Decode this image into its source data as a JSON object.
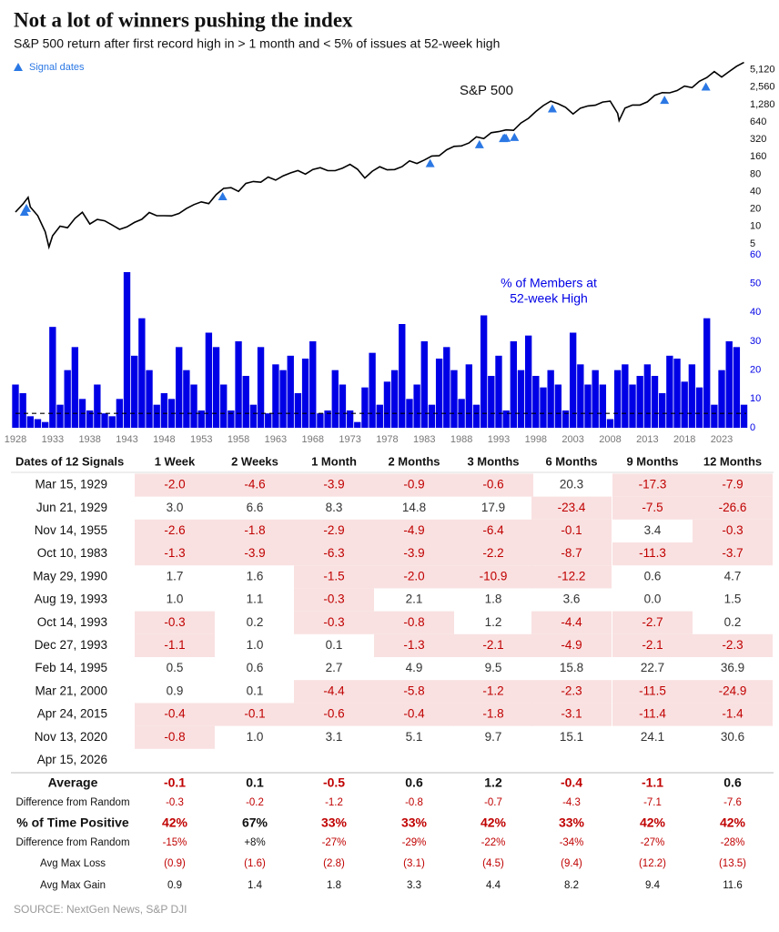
{
  "header": {
    "title": "Not a lot of winners pushing the index",
    "subtitle": "S&P 500 return after first record high in > 1 month and < 5% of issues at 52-week high"
  },
  "chart_data": [
    {
      "type": "line",
      "log_scale": true,
      "xlim": [
        1928,
        2026.3
      ],
      "ylim": [
        3,
        7000
      ],
      "yticks": [
        {
          "value": 5120,
          "label": "5,120"
        },
        {
          "value": 2560,
          "label": "2,560"
        },
        {
          "value": 1280,
          "label": "1,280"
        },
        640,
        320,
        160,
        80,
        40,
        20,
        10,
        5
      ],
      "legend": "upper left",
      "series": [
        {
          "name": "S&P 500",
          "color": "#000000",
          "x": [
            1928,
            1929,
            1929.7,
            1930,
            1931,
            1932,
            1932.5,
            1933,
            1934,
            1935,
            1936,
            1937,
            1938,
            1939,
            1940,
            1941,
            1942,
            1943,
            1944,
            1945,
            1946,
            1947,
            1948,
            1949,
            1950,
            1951,
            1952,
            1953,
            1954,
            1955,
            1956,
            1957,
            1958,
            1959,
            1960,
            1961,
            1962,
            1963,
            1964,
            1965,
            1966,
            1967,
            1968,
            1969,
            1970,
            1971,
            1972,
            1973,
            1974,
            1975,
            1976,
            1977,
            1978,
            1979,
            1980,
            1981,
            1982,
            1983,
            1984,
            1985,
            1986,
            1987,
            1988,
            1989,
            1990,
            1991,
            1992,
            1993,
            1994,
            1995,
            1996,
            1997,
            1998,
            1999,
            2000,
            2001,
            2002,
            2003,
            2004,
            2005,
            2006,
            2007,
            2008,
            2009,
            2009.2,
            2010,
            2011,
            2012,
            2013,
            2014,
            2015,
            2016,
            2017,
            2018,
            2019,
            2020,
            2021,
            2022,
            2023,
            2024,
            2025,
            2026
          ],
          "values": [
            17.7,
            24.4,
            31.9,
            21.7,
            15.3,
            8.1,
            4.4,
            6.9,
            10.1,
            9.5,
            13.8,
            17.6,
            11.0,
            13.2,
            12.5,
            10.6,
            8.9,
            9.8,
            11.7,
            13.3,
            17.4,
            15.3,
            15.3,
            15.2,
            16.8,
            20.4,
            23.8,
            26.6,
            24.8,
            35.6,
            45.5,
            46.7,
            40.3,
            55.4,
            59.9,
            58.1,
            71.6,
            63.1,
            75.0,
            84.2,
            92.4,
            80.3,
            96.5,
            103.9,
            92.1,
            92.2,
            102.1,
            118.1,
            97.6,
            68.6,
            90.2,
            107.5,
            95.1,
            96.1,
            107.9,
            135.8,
            122.6,
            140.6,
            164.9,
            167.2,
            211.3,
            242.2,
            247.1,
            277.7,
            353.4,
            330.2,
            417.1,
            435.7,
            466.5,
            459.3,
            615.9,
            740.7,
            970.4,
            1229.2,
            1469.3,
            1320.3,
            1148.1,
            879.8,
            1111.9,
            1211.9,
            1248.3,
            1418.3,
            1468.4,
            903.3,
            676,
            1115.1,
            1257.6,
            1257.6,
            1426.2,
            1848.4,
            2058.9,
            2043.9,
            2238.8,
            2673.6,
            2506.9,
            3230.8,
            3756.1,
            4766.2,
            3839.5,
            4769.8,
            5881.6,
            6845
          ]
        },
        {
          "name": "Signal dates",
          "color": "#2b78e4",
          "x": [
            1929.2,
            1929.47,
            1955.87,
            1983.78,
            1990.41,
            1993.63,
            1993.79,
            1993.99,
            1995.12,
            2000.22,
            2015.31,
            2020.87
          ],
          "values": [
            24.5,
            28.5,
            45.5,
            170,
            360,
            460,
            466,
            466,
            481,
            1500,
            2110,
            3580
          ]
        }
      ]
    },
    {
      "type": "bar",
      "title": [
        "% of Members at",
        "52-week High"
      ],
      "color": "#0000e6",
      "xlim": [
        1928,
        2026.3
      ],
      "ylim": [
        0,
        60
      ],
      "yticks": [
        0,
        10,
        20,
        30,
        40,
        50,
        60
      ],
      "reference_line": 5,
      "xticks": [
        1928,
        1933,
        1938,
        1943,
        1948,
        1953,
        1958,
        1963,
        1968,
        1973,
        1978,
        1983,
        1988,
        1993,
        1998,
        2003,
        2008,
        2013,
        2018,
        2023
      ],
      "x": [
        1928,
        1929,
        1930,
        1931,
        1932,
        1933,
        1934,
        1935,
        1936,
        1937,
        1938,
        1939,
        1940,
        1941,
        1942,
        1943,
        1944,
        1945,
        1946,
        1947,
        1948,
        1949,
        1950,
        1951,
        1952,
        1953,
        1954,
        1955,
        1956,
        1957,
        1958,
        1959,
        1960,
        1961,
        1962,
        1963,
        1964,
        1965,
        1966,
        1967,
        1968,
        1969,
        1970,
        1971,
        1972,
        1973,
        1974,
        1975,
        1976,
        1977,
        1978,
        1979,
        1980,
        1981,
        1982,
        1983,
        1984,
        1985,
        1986,
        1987,
        1988,
        1989,
        1990,
        1991,
        1992,
        1993,
        1994,
        1995,
        1996,
        1997,
        1998,
        1999,
        2000,
        2001,
        2002,
        2003,
        2004,
        2005,
        2006,
        2007,
        2008,
        2009,
        2010,
        2011,
        2012,
        2013,
        2014,
        2015,
        2016,
        2017,
        2018,
        2019,
        2020,
        2021,
        2022,
        2023,
        2024,
        2025,
        2026
      ],
      "values": [
        15,
        12,
        4,
        3,
        2,
        35,
        8,
        20,
        28,
        10,
        6,
        15,
        5,
        4,
        10,
        54,
        25,
        38,
        20,
        8,
        12,
        10,
        28,
        20,
        15,
        6,
        33,
        28,
        15,
        6,
        30,
        18,
        8,
        28,
        5,
        22,
        20,
        25,
        12,
        24,
        30,
        5,
        6,
        20,
        15,
        6,
        2,
        14,
        26,
        8,
        16,
        20,
        36,
        10,
        15,
        30,
        8,
        24,
        28,
        20,
        10,
        22,
        8,
        39,
        18,
        25,
        6,
        30,
        20,
        32,
        18,
        14,
        20,
        15,
        6,
        33,
        22,
        15,
        20,
        15,
        3,
        20,
        22,
        15,
        18,
        22,
        18,
        12,
        25,
        24,
        16,
        22,
        14,
        38,
        8,
        20,
        30,
        28,
        8
      ]
    }
  ],
  "table": {
    "columns": [
      "Dates of 12 Signals",
      "1 Week",
      "2 Weeks",
      "1 Month",
      "2 Months",
      "3 Months",
      "6 Months",
      "9 Months",
      "12 Months"
    ],
    "rows": [
      {
        "date": "Mar 15, 1929",
        "values": [
          "-2.0",
          "-4.6",
          "-3.9",
          "-0.9",
          "-0.6",
          "20.3",
          "-17.3",
          "-7.9"
        ]
      },
      {
        "date": "Jun 21, 1929",
        "values": [
          "3.0",
          "6.6",
          "8.3",
          "14.8",
          "17.9",
          "-23.4",
          "-7.5",
          "-26.6"
        ]
      },
      {
        "date": "Nov 14, 1955",
        "values": [
          "-2.6",
          "-1.8",
          "-2.9",
          "-4.9",
          "-6.4",
          "-0.1",
          "3.4",
          "-0.3"
        ]
      },
      {
        "date": "Oct 10, 1983",
        "values": [
          "-1.3",
          "-3.9",
          "-6.3",
          "-3.9",
          "-2.2",
          "-8.7",
          "-11.3",
          "-3.7"
        ]
      },
      {
        "date": "May 29, 1990",
        "values": [
          "1.7",
          "1.6",
          "-1.5",
          "-2.0",
          "-10.9",
          "-12.2",
          "0.6",
          "4.7"
        ]
      },
      {
        "date": "Aug 19, 1993",
        "values": [
          "1.0",
          "1.1",
          "-0.3",
          "2.1",
          "1.8",
          "3.6",
          "0.0",
          "1.5"
        ]
      },
      {
        "date": "Oct 14, 1993",
        "values": [
          "-0.3",
          "0.2",
          "-0.3",
          "-0.8",
          "1.2",
          "-4.4",
          "-2.7",
          "0.2"
        ]
      },
      {
        "date": "Dec 27, 1993",
        "values": [
          "-1.1",
          "1.0",
          "0.1",
          "-1.3",
          "-2.1",
          "-4.9",
          "-2.1",
          "-2.3"
        ]
      },
      {
        "date": "Feb 14, 1995",
        "values": [
          "0.5",
          "0.6",
          "2.7",
          "4.9",
          "9.5",
          "15.8",
          "22.7",
          "36.9"
        ]
      },
      {
        "date": "Mar 21, 2000",
        "values": [
          "0.9",
          "0.1",
          "-4.4",
          "-5.8",
          "-1.2",
          "-2.3",
          "-11.5",
          "-24.9"
        ]
      },
      {
        "date": "Apr 24, 2015",
        "values": [
          "-0.4",
          "-0.1",
          "-0.6",
          "-0.4",
          "-1.8",
          "-3.1",
          "-11.4",
          "-1.4"
        ]
      },
      {
        "date": "Nov 13, 2020",
        "values": [
          "-0.8",
          "1.0",
          "3.1",
          "5.1",
          "9.7",
          "15.1",
          "24.1",
          "30.6"
        ]
      },
      {
        "date": "Apr 15, 2026",
        "values": []
      }
    ],
    "summary": [
      {
        "label": "Average",
        "values": [
          "-0.1",
          "0.1",
          "-0.5",
          "0.6",
          "1.2",
          "-0.4",
          "-1.1",
          "0.6"
        ]
      },
      {
        "label": "Difference from Random",
        "values": [
          "-0.3",
          "-0.2",
          "-1.2",
          "-0.8",
          "-0.7",
          "-4.3",
          "-7.1",
          "-7.6"
        ]
      },
      {
        "label": "% of Time Positive",
        "values": [
          "42%",
          "67%",
          "33%",
          "33%",
          "42%",
          "33%",
          "42%",
          "42%"
        ]
      },
      {
        "label": "Difference from Random",
        "values": [
          "-15%",
          "+8%",
          "-27%",
          "-29%",
          "-22%",
          "-34%",
          "-27%",
          "-28%"
        ]
      },
      {
        "label": "Avg Max Loss",
        "values": [
          "(0.9)",
          "(1.6)",
          "(2.8)",
          "(3.1)",
          "(4.5)",
          "(9.4)",
          "(12.2)",
          "(13.5)"
        ]
      },
      {
        "label": "Avg Max Gain",
        "values": [
          "0.9",
          "1.4",
          "1.8",
          "3.3",
          "4.4",
          "8.2",
          "9.4",
          "11.6"
        ]
      }
    ]
  },
  "source": "SOURCE: NextGen News, S&P DJI"
}
